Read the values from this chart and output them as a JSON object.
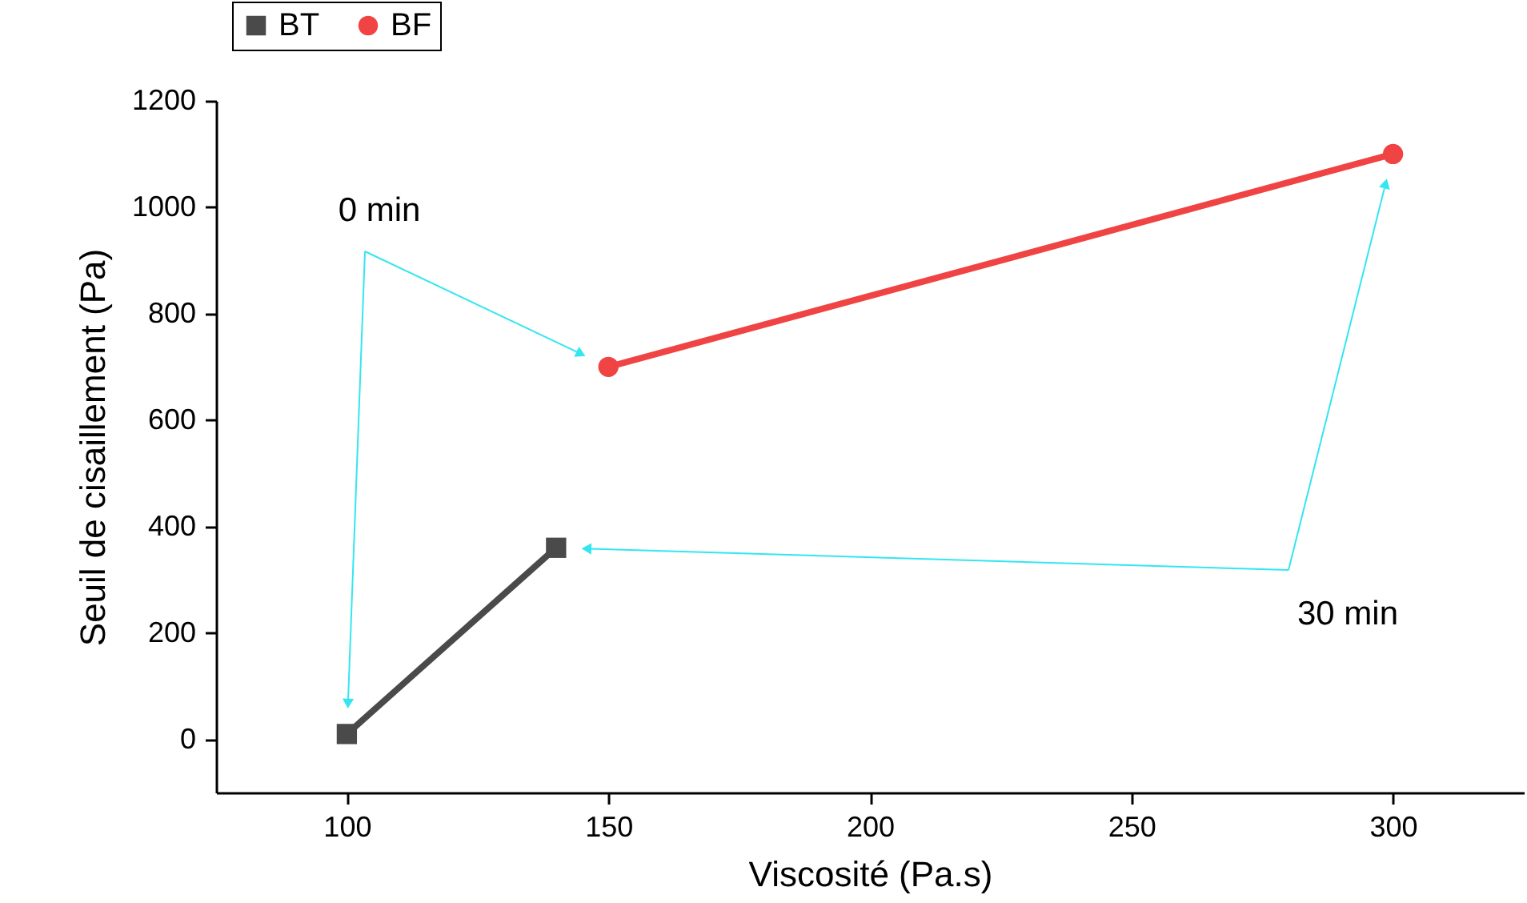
{
  "chart_data": {
    "type": "line",
    "xlabel": "Viscosité (Pa.s)",
    "ylabel": "Seuil de cisaillement (Pa)",
    "series": [
      {
        "name": "BT",
        "color": "#4a4a4a",
        "marker": "square",
        "x": [
          100,
          140
        ],
        "values": [
          10,
          360
        ]
      },
      {
        "name": "BF",
        "color": "#f04444",
        "marker": "circle",
        "x": [
          150,
          300
        ],
        "values": [
          700,
          1100
        ]
      }
    ],
    "xlim": [
      75,
      325
    ],
    "xticks": [
      100,
      150,
      200,
      250,
      300
    ],
    "ylim": [
      -100,
      1200
    ],
    "yticks": [
      0,
      200,
      400,
      600,
      800,
      1000,
      1200
    ],
    "grid": false,
    "legend": "top left",
    "line_style": "solid",
    "annotations": [
      "0 min",
      "30 min"
    ]
  }
}
